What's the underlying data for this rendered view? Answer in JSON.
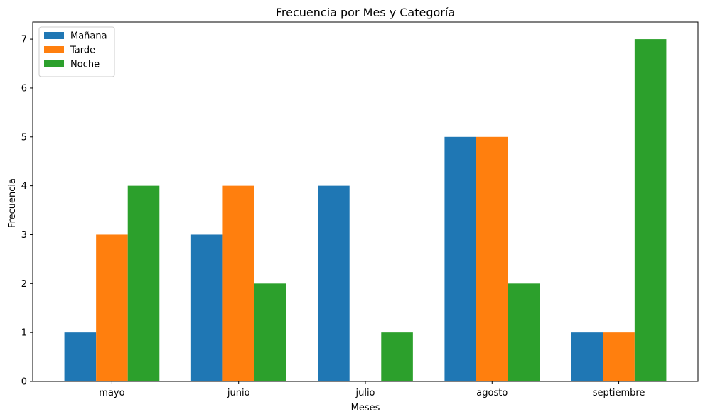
{
  "chart_data": {
    "type": "bar",
    "title": "Frecuencia por Mes y Categoría",
    "xlabel": "Meses",
    "ylabel": "Frecuencia",
    "categories": [
      "mayo",
      "junio",
      "julio",
      "agosto",
      "septiembre"
    ],
    "series": [
      {
        "name": "Mañana",
        "color": "#1f77b4",
        "values": [
          1,
          3,
          4,
          5,
          1
        ]
      },
      {
        "name": "Tarde",
        "color": "#ff7f0e",
        "values": [
          3,
          4,
          0,
          5,
          1
        ]
      },
      {
        "name": "Noche",
        "color": "#2ca02c",
        "values": [
          4,
          2,
          1,
          2,
          7
        ]
      }
    ],
    "ylim": [
      0,
      7.35
    ],
    "yticks": [
      0,
      1,
      2,
      3,
      4,
      5,
      6,
      7
    ],
    "grid": false,
    "legend_position": "upper-left"
  }
}
